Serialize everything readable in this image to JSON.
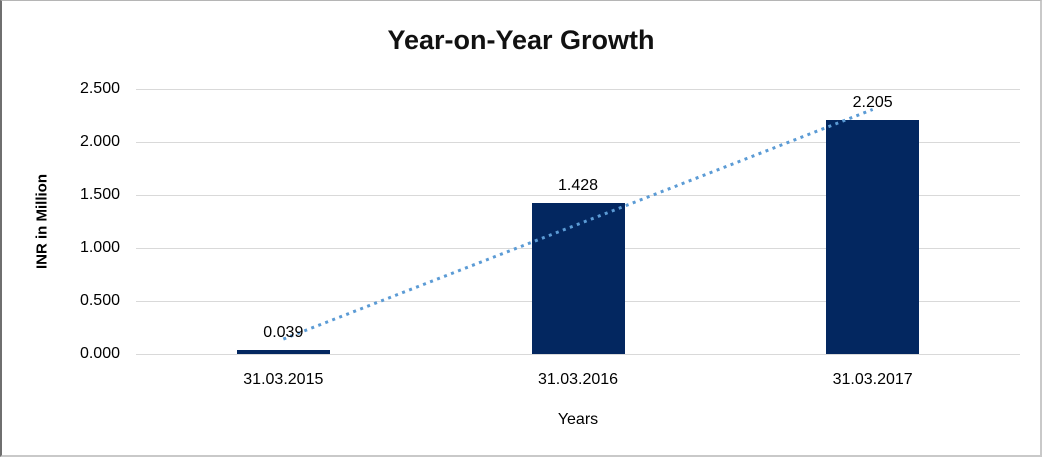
{
  "chart_data": {
    "type": "bar",
    "title": "Year-on-Year Growth",
    "categories": [
      "31.03.2015",
      "31.03.2016",
      "31.03.2017"
    ],
    "values": [
      0.039,
      1.428,
      2.205
    ],
    "data_labels": [
      "0.039",
      "1.428",
      "2.205"
    ],
    "xlabel": "Years",
    "ylabel": "INR in Million",
    "ylim": [
      0,
      2.5
    ],
    "ytick_step": 0.5,
    "ytick_labels": [
      "0.000",
      "0.500",
      "1.000",
      "1.500",
      "2.000",
      "2.500"
    ],
    "grid": true,
    "legend": "none",
    "trendline": {
      "type": "linear",
      "style": "dotted",
      "color": "#5B9BD5"
    },
    "colors": {
      "bar": "#032760",
      "gridline": "#d9d9d9",
      "text": "#000000",
      "title": "#111111"
    }
  }
}
